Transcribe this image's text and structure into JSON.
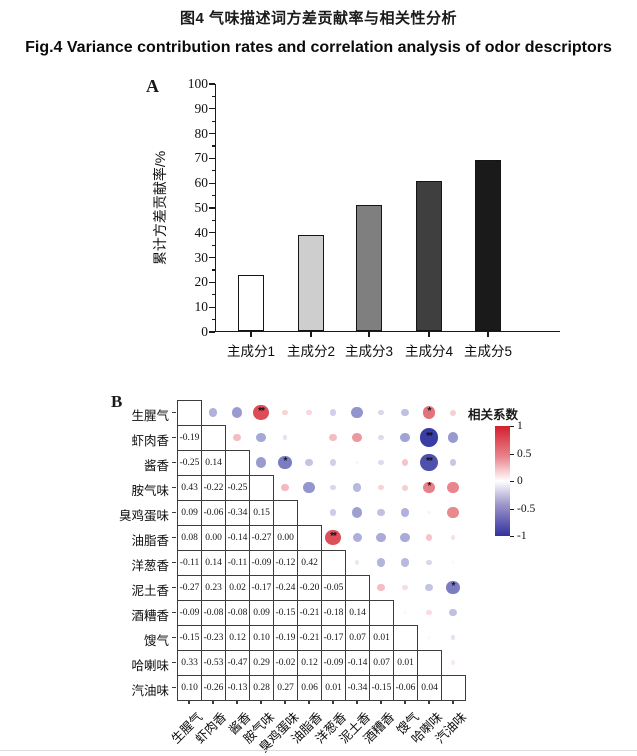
{
  "figure": {
    "title_zh": "图4 气味描述词方差贡献率与相关性分析",
    "title_en": "Fig.4 Variance contribution rates and correlation analysis of odor descriptors"
  },
  "panels": {
    "a_label": "A",
    "b_label": "B"
  },
  "chart_data": [
    {
      "type": "bar",
      "panel": "A",
      "title": "",
      "xlabel": "",
      "ylabel": "累计方差贡献率/%",
      "categories": [
        "主成分1",
        "主成分2",
        "主成分3",
        "主成分4",
        "主成分5"
      ],
      "values": [
        22.4,
        38.8,
        50.8,
        60.5,
        69.0
      ],
      "bar_colors": [
        "#ffffff",
        "#cecece",
        "#7f7f7f",
        "#3f3f3f",
        "#1a1a1a"
      ],
      "ylim": [
        0,
        100
      ],
      "ytick_step": 10,
      "ytick_minor_step": 5,
      "grid": false
    },
    {
      "type": "heatmap",
      "panel": "B",
      "title": "",
      "legend_title": "相关系数",
      "legend_ticks": [
        "1",
        "0.5",
        "0",
        "-0.5",
        "-1"
      ],
      "legend_range": [
        1,
        -1
      ],
      "color_positive": "#d41f2d",
      "color_negative": "#3236a0",
      "labels": [
        "生腥气",
        "虾肉香",
        "酱香",
        "胺气味",
        "臭鸡蛋味",
        "油脂香",
        "洋葱香",
        "泥土香",
        "酒糟香",
        "馊气",
        "哈喇味",
        "汽油味"
      ],
      "lower_triangle_values": [
        [
          "-0.19"
        ],
        [
          "-0.25",
          "0.14"
        ],
        [
          "0.43",
          "-0.22",
          "-0.25"
        ],
        [
          "0.09",
          "-0.06",
          "-0.34",
          "0.15"
        ],
        [
          "0.08",
          "0.00",
          "-0.14",
          "-0.27",
          "0.00"
        ],
        [
          "-0.11",
          "0.14",
          "-0.11",
          "-0.09",
          "-0.12",
          "0.42"
        ],
        [
          "-0.27",
          "0.23",
          "0.02",
          "-0.17",
          "-0.24",
          "-0.20",
          "-0.05"
        ],
        [
          "-0.09",
          "-0.08",
          "-0.08",
          "0.09",
          "-0.15",
          "-0.21",
          "-0.18",
          "0.14"
        ],
        [
          "-0.15",
          "-0.23",
          "0.12",
          "0.10",
          "-0.19",
          "-0.21",
          "-0.17",
          "0.07",
          "0.01"
        ],
        [
          "0.33",
          "-0.53",
          "-0.47",
          "0.29",
          "-0.02",
          "0.12",
          "-0.09",
          "-0.14",
          "0.07",
          "0.01"
        ],
        [
          "0.10",
          "-0.26",
          "-0.13",
          "0.28",
          "0.27",
          "0.06",
          "0.01",
          "-0.34",
          "-0.15",
          "-0.06",
          "0.04"
        ]
      ],
      "significance": [
        {
          "row": 1,
          "col": 4,
          "mark": "**"
        },
        {
          "row": 1,
          "col": 11,
          "mark": "*"
        },
        {
          "row": 2,
          "col": 11,
          "mark": "**"
        },
        {
          "row": 3,
          "col": 5,
          "mark": "*"
        },
        {
          "row": 3,
          "col": 11,
          "mark": "**"
        },
        {
          "row": 4,
          "col": 11,
          "mark": "*"
        },
        {
          "row": 6,
          "col": 7,
          "mark": "**"
        },
        {
          "row": 8,
          "col": 12,
          "mark": "*"
        }
      ]
    }
  ]
}
